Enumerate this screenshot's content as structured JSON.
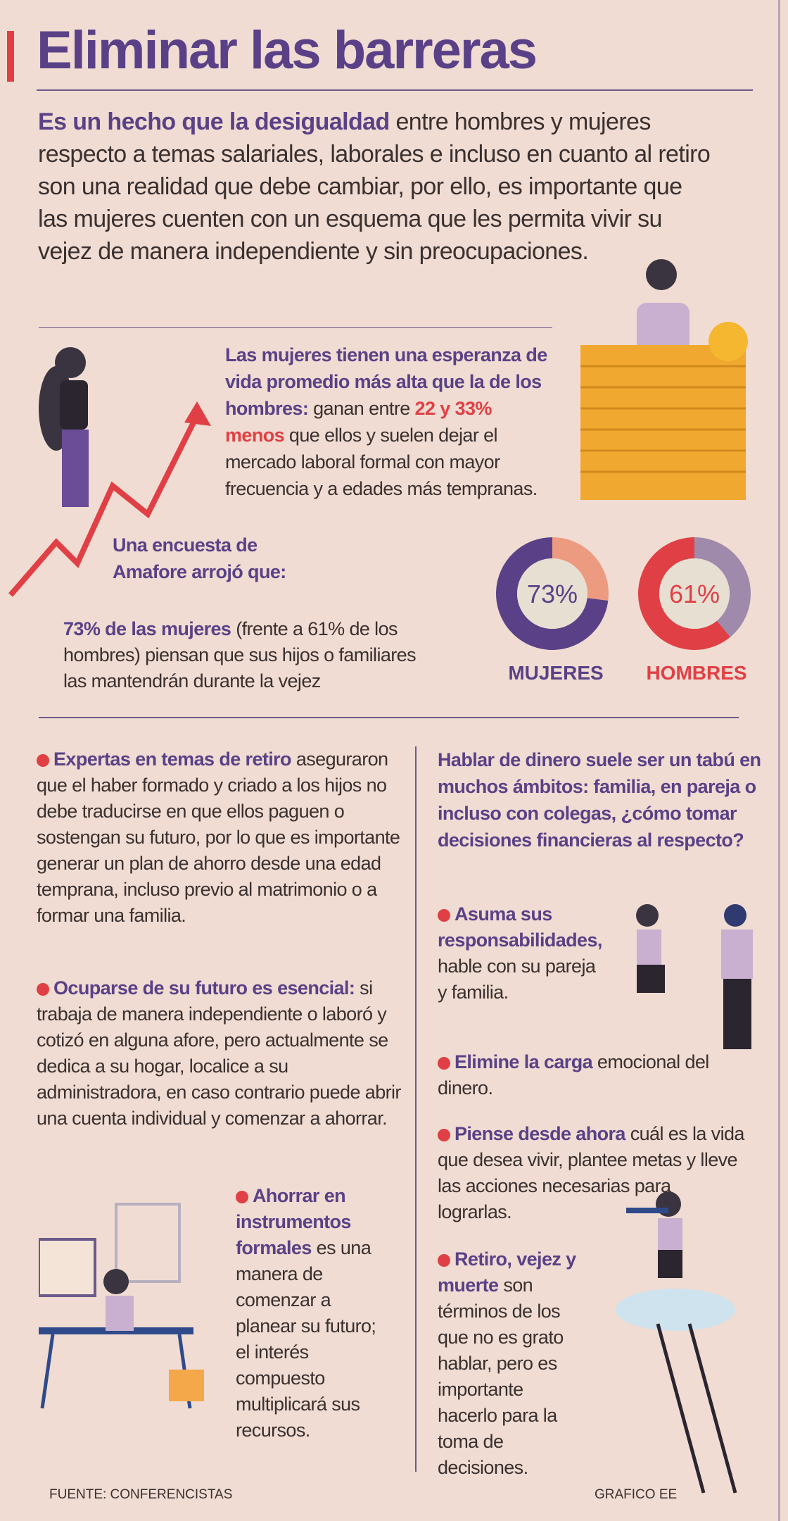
{
  "title": "Eliminar las barreras",
  "intro": {
    "bold": "Es un hecho que la desigualdad",
    "rest": " entre hombres y mujeres respecto a temas salariales, laborales e incluso en cuanto al retiro son una realidad que debe cambiar, por ello, es importante que las mujeres cuenten con un esquema que les permita vivir su vejez de manera independiente y sin preocupaciones."
  },
  "life": {
    "bold": "Las mujeres tienen una esperanza de vida promedio más alta que la de los hombres:",
    "t1": " ganan entre ",
    "highlight": "22 y 33% menos",
    "t2": " que ellos y suelen dejar el mercado laboral formal con mayor frecuencia y a edades más tempranas."
  },
  "survey": {
    "heading": "Una encuesta de Amafore arrojó que:",
    "bold": "73% de las mujeres",
    "rest": " (frente a 61% de los hombres) piensan que sus hijos o familiares las mantendrán durante la vejez"
  },
  "chart_data": {
    "type": "pie",
    "series": [
      {
        "name": "MUJERES",
        "value": 73,
        "label": "73%",
        "colors": [
          "#5a4187",
          "#ec9a80"
        ]
      },
      {
        "name": "HOMBRES",
        "value": 61,
        "label": "61%",
        "colors": [
          "#e04045",
          "#a08aab"
        ]
      }
    ]
  },
  "left": [
    {
      "bold": "Expertas en temas de retiro",
      "rest": " aseguraron que el haber formado y criado a los hijos no debe traducirse en que ellos paguen o sostengan su futuro, por lo que es importante generar un plan de ahorro desde una edad temprana, incluso previo al matrimonio o a formar una familia."
    },
    {
      "bold": "Ocuparse de su futuro es esencial:",
      "rest": " si trabaja de manera independiente o laboró y cotizó en alguna afore, pero actualmente se dedica a su hogar, localice a su administradora, en caso contrario puede abrir una cuenta individual y comenzar a ahorrar."
    },
    {
      "bold": "Ahorrar en instrumentos formales",
      "rest": " es una manera de comenzar a planear su futuro; el interés compuesto multiplicará sus recursos."
    }
  ],
  "right_heading": "Hablar de dinero suele ser un tabú en muchos ámbitos: familia, en pareja o incluso con colegas, ¿cómo tomar decisiones financieras al respecto?",
  "right": [
    {
      "bold": "Asuma sus responsabilidades,",
      "rest": " hable con su pareja y familia."
    },
    {
      "bold": "Elimine la carga",
      "rest": " emocional del dinero."
    },
    {
      "bold": "Piense desde ahora",
      "rest": " cuál es la vida que desea vivir, plantee metas y lleve las acciones necesarias para lograrlas."
    },
    {
      "bold": "Retiro, vejez y muerte",
      "rest": " son términos de los que no es grato hablar, pero es importante hacerlo para la toma de decisiones."
    }
  ],
  "footer": {
    "source": "FUENTE:  CONFERENCISTAS",
    "credit": "GRAFICO EE"
  }
}
